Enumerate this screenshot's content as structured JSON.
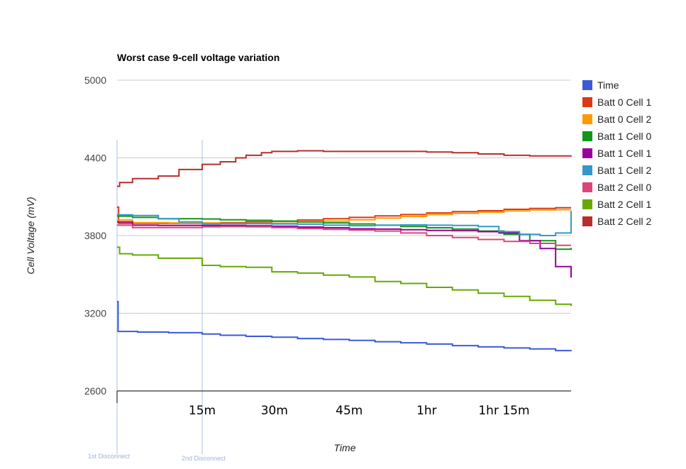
{
  "chart_data": {
    "type": "line",
    "title": "Worst case 9-cell voltage variation",
    "xlabel": "Time",
    "ylabel": "Cell Voltage (mV)",
    "ylim": [
      2600,
      5000
    ],
    "yticks": [
      5000,
      4400,
      3800,
      3200,
      2600
    ],
    "xlim": [
      0,
      88
    ],
    "xunit": "minutes",
    "xticks": [
      {
        "x": 16.5,
        "label": "15m"
      },
      {
        "x": 30.5,
        "label": "30m"
      },
      {
        "x": 45,
        "label": "45m"
      },
      {
        "x": 60,
        "label": "1hr"
      },
      {
        "x": 75,
        "label": "1hr 15m"
      }
    ],
    "grid": true,
    "legend_position": "right",
    "annotations": [
      {
        "x": 0,
        "label": "1st Disconnect"
      },
      {
        "x": 16.5,
        "label": "2nd Disconnect"
      }
    ],
    "series": [
      {
        "name": "Time",
        "color": "#3b5bd6",
        "points": [
          [
            0,
            3290
          ],
          [
            0.2,
            3060
          ],
          [
            4,
            3055
          ],
          [
            10,
            3050
          ],
          [
            16.5,
            3040
          ],
          [
            20,
            3030
          ],
          [
            25,
            3022
          ],
          [
            30,
            3015
          ],
          [
            35,
            3005
          ],
          [
            40,
            2998
          ],
          [
            45,
            2990
          ],
          [
            50,
            2980
          ],
          [
            55,
            2972
          ],
          [
            60,
            2962
          ],
          [
            65,
            2950
          ],
          [
            70,
            2940
          ],
          [
            75,
            2932
          ],
          [
            80,
            2925
          ],
          [
            85,
            2912
          ],
          [
            88,
            2915
          ]
        ]
      },
      {
        "name": "Batt 0 Cell 1",
        "color": "#dc3912",
        "points": [
          [
            0,
            4020
          ],
          [
            0.3,
            3895
          ],
          [
            5,
            3895
          ],
          [
            10,
            3895
          ],
          [
            16.5,
            3895
          ],
          [
            20,
            3900
          ],
          [
            25,
            3905
          ],
          [
            30,
            3910
          ],
          [
            35,
            3920
          ],
          [
            40,
            3930
          ],
          [
            45,
            3940
          ],
          [
            50,
            3952
          ],
          [
            55,
            3962
          ],
          [
            60,
            3975
          ],
          [
            65,
            3985
          ],
          [
            70,
            3992
          ],
          [
            75,
            4003
          ],
          [
            80,
            4010
          ],
          [
            85,
            4015
          ],
          [
            88,
            4015
          ]
        ]
      },
      {
        "name": "Batt 0 Cell 2",
        "color": "#ff9900",
        "points": [
          [
            0,
            3920
          ],
          [
            3,
            3900
          ],
          [
            10,
            3898
          ],
          [
            16.5,
            3898
          ],
          [
            20,
            3895
          ],
          [
            25,
            3893
          ],
          [
            30,
            3895
          ],
          [
            35,
            3905
          ],
          [
            40,
            3912
          ],
          [
            45,
            3922
          ],
          [
            50,
            3935
          ],
          [
            55,
            3948
          ],
          [
            60,
            3962
          ],
          [
            65,
            3972
          ],
          [
            70,
            3980
          ],
          [
            75,
            3990
          ],
          [
            80,
            3998
          ],
          [
            85,
            4000
          ],
          [
            88,
            4000
          ]
        ]
      },
      {
        "name": "Batt 1 Cell 0",
        "color": "#109618",
        "points": [
          [
            0,
            3950
          ],
          [
            3,
            3940
          ],
          [
            8,
            3930
          ],
          [
            16.5,
            3928
          ],
          [
            20,
            3922
          ],
          [
            25,
            3918
          ],
          [
            30,
            3912
          ],
          [
            35,
            3905
          ],
          [
            40,
            3898
          ],
          [
            45,
            3890
          ],
          [
            50,
            3880
          ],
          [
            55,
            3870
          ],
          [
            60,
            3860
          ],
          [
            65,
            3850
          ],
          [
            70,
            3835
          ],
          [
            75,
            3810
          ],
          [
            80,
            3760
          ],
          [
            85,
            3695
          ],
          [
            88,
            3705
          ]
        ]
      },
      {
        "name": "Batt 1 Cell 1",
        "color": "#990099",
        "points": [
          [
            0,
            3905
          ],
          [
            3,
            3880
          ],
          [
            8,
            3878
          ],
          [
            16.5,
            3878
          ],
          [
            20,
            3878
          ],
          [
            25,
            3875
          ],
          [
            30,
            3872
          ],
          [
            35,
            3866
          ],
          [
            40,
            3860
          ],
          [
            45,
            3852
          ],
          [
            50,
            3850
          ],
          [
            55,
            3845
          ],
          [
            60,
            3840
          ],
          [
            65,
            3838
          ],
          [
            70,
            3830
          ],
          [
            74,
            3820
          ],
          [
            78,
            3760
          ],
          [
            82,
            3700
          ],
          [
            85,
            3560
          ],
          [
            88,
            3475
          ]
        ]
      },
      {
        "name": "Batt 1 Cell 2",
        "color": "#3399cc",
        "points": [
          [
            0,
            3960
          ],
          [
            3,
            3955
          ],
          [
            8,
            3930
          ],
          [
            12,
            3905
          ],
          [
            16.5,
            3890
          ],
          [
            20,
            3892
          ],
          [
            25,
            3892
          ],
          [
            30,
            3890
          ],
          [
            35,
            3888
          ],
          [
            40,
            3880
          ],
          [
            45,
            3876
          ],
          [
            50,
            3880
          ],
          [
            55,
            3882
          ],
          [
            60,
            3880
          ],
          [
            65,
            3878
          ],
          [
            70,
            3870
          ],
          [
            74,
            3830
          ],
          [
            78,
            3810
          ],
          [
            82,
            3800
          ],
          [
            85,
            3820
          ],
          [
            88,
            3990
          ]
        ]
      },
      {
        "name": "Batt 2 Cell 0",
        "color": "#dd4477",
        "points": [
          [
            0,
            3880
          ],
          [
            3,
            3862
          ],
          [
            8,
            3862
          ],
          [
            16.5,
            3868
          ],
          [
            20,
            3870
          ],
          [
            25,
            3868
          ],
          [
            30,
            3862
          ],
          [
            35,
            3855
          ],
          [
            40,
            3848
          ],
          [
            45,
            3842
          ],
          [
            50,
            3835
          ],
          [
            55,
            3820
          ],
          [
            60,
            3800
          ],
          [
            65,
            3785
          ],
          [
            70,
            3770
          ],
          [
            75,
            3755
          ],
          [
            80,
            3740
          ],
          [
            85,
            3725
          ],
          [
            88,
            3725
          ]
        ]
      },
      {
        "name": "Batt 2 Cell 1",
        "color": "#66aa00",
        "points": [
          [
            0,
            3710
          ],
          [
            0.5,
            3660
          ],
          [
            3,
            3650
          ],
          [
            8,
            3625
          ],
          [
            16.5,
            3570
          ],
          [
            20,
            3560
          ],
          [
            25,
            3555
          ],
          [
            30,
            3520
          ],
          [
            35,
            3510
          ],
          [
            40,
            3495
          ],
          [
            45,
            3480
          ],
          [
            50,
            3445
          ],
          [
            55,
            3430
          ],
          [
            60,
            3400
          ],
          [
            65,
            3380
          ],
          [
            70,
            3355
          ],
          [
            75,
            3330
          ],
          [
            80,
            3300
          ],
          [
            85,
            3270
          ],
          [
            88,
            3255
          ]
        ]
      },
      {
        "name": "Batt 2 Cell 2",
        "color": "#b82e2e",
        "points": [
          [
            0,
            4180
          ],
          [
            0.5,
            4210
          ],
          [
            3,
            4240
          ],
          [
            8,
            4260
          ],
          [
            12,
            4310
          ],
          [
            16.5,
            4350
          ],
          [
            20,
            4370
          ],
          [
            23,
            4400
          ],
          [
            25,
            4420
          ],
          [
            28,
            4440
          ],
          [
            30,
            4450
          ],
          [
            35,
            4455
          ],
          [
            40,
            4450
          ],
          [
            45,
            4450
          ],
          [
            50,
            4450
          ],
          [
            55,
            4450
          ],
          [
            60,
            4445
          ],
          [
            65,
            4440
          ],
          [
            70,
            4430
          ],
          [
            75,
            4420
          ],
          [
            80,
            4415
          ],
          [
            85,
            4415
          ],
          [
            88,
            4418
          ]
        ]
      }
    ]
  }
}
